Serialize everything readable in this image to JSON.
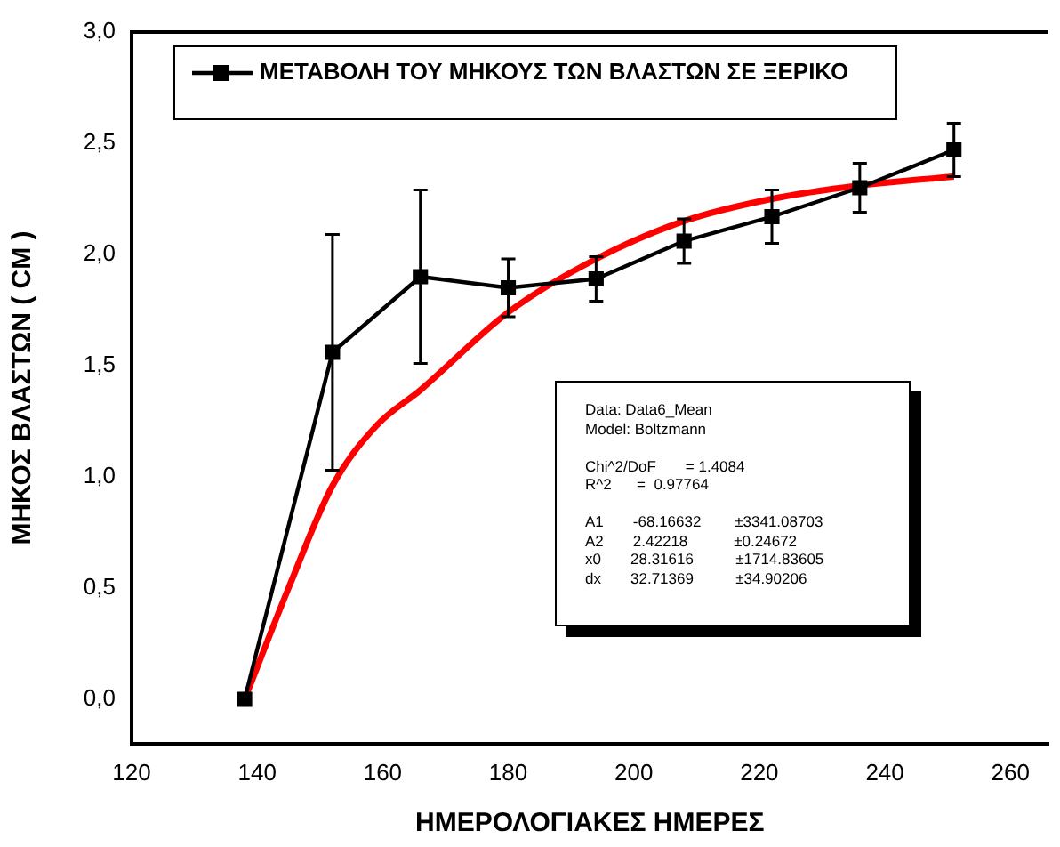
{
  "chart_data": {
    "type": "line",
    "xlabel": "ΗΜΕΡΟΛΟΓΙΑΚΕΣ ΗΜΕΡΕΣ",
    "ylabel": "ΜΗΚΟΣ ΒΛΑΣΤΩΝ ( CM )",
    "xlim": [
      120,
      266
    ],
    "xticks": [
      120,
      140,
      160,
      180,
      200,
      220,
      240,
      260
    ],
    "ylim": [
      -0.2,
      3.0
    ],
    "yticks": [
      {
        "value": 0,
        "label": "0,0"
      },
      {
        "value": 0.5,
        "label": "0,5"
      },
      {
        "value": 1,
        "label": "1,0"
      },
      {
        "value": 1.5,
        "label": "1,5"
      },
      {
        "value": 2,
        "label": "2,0"
      },
      {
        "value": 2.5,
        "label": "2,5"
      },
      {
        "value": 3,
        "label": "3,0"
      }
    ],
    "grid": false,
    "legend": "top left",
    "series": [
      {
        "name": "ΜΕΤΑΒΟΛΗ ΤΟΥ ΜΗΚΟΥΣ ΤΩΝ ΒΛΑΣΤΩΝ ΣΕ ΞΕΡΙΚΟ",
        "color": "#000000",
        "marker": "square",
        "x": [
          138,
          152,
          166,
          180,
          194,
          208,
          222,
          236,
          251
        ],
        "values": [
          0,
          1.56,
          1.9,
          1.85,
          1.89,
          2.06,
          2.17,
          2.3,
          2.47
        ],
        "errors": [
          null,
          0.53,
          0.39,
          0.13,
          0.1,
          0.1,
          0.12,
          0.11,
          0.12
        ]
      },
      {
        "color": "#ff0000",
        "marker": "none",
        "x": [
          138,
          145,
          152,
          159,
          166,
          180,
          194,
          208,
          222,
          236,
          251
        ],
        "values": [
          0,
          0.5,
          0.96,
          1.23,
          1.39,
          1.74,
          1.98,
          2.15,
          2.25,
          2.31,
          2.35
        ]
      }
    ],
    "annotations": [
      "Data: Data6_Mean",
      "Model: Boltzmann",
      "Chi^2/DoF       = 1.4084",
      "R^2      =  0.97764",
      "A1       -68.16632        ±3341.08703",
      "A2       2.42218           ±0.24672",
      "x0       28.31616          ±1714.83605",
      "dx       32.71369          ±34.90206"
    ]
  }
}
